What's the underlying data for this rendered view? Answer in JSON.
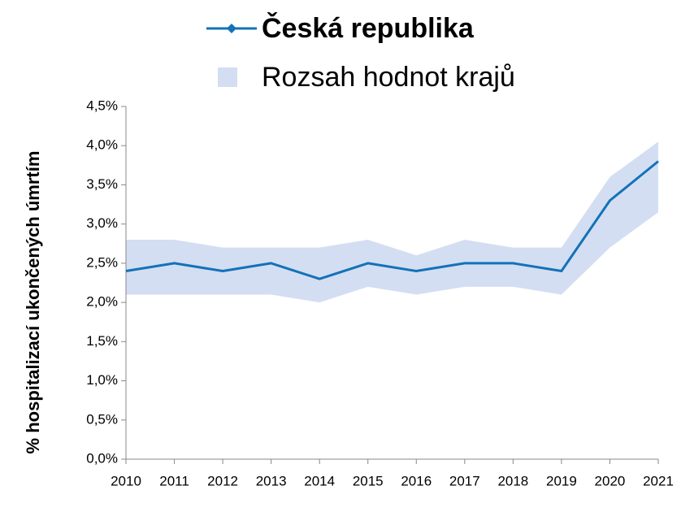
{
  "chart_data": {
    "type": "line",
    "y_axis_label": "% hospitalizací ukončených úmrtím",
    "x": [
      2010,
      2011,
      2012,
      2013,
      2014,
      2015,
      2016,
      2017,
      2018,
      2019,
      2020,
      2021
    ],
    "xlim": [
      2010,
      2021
    ],
    "xticks": [
      2010,
      2011,
      2012,
      2013,
      2014,
      2015,
      2016,
      2017,
      2018,
      2019,
      2020,
      2021
    ],
    "ylim": [
      0,
      4.5
    ],
    "yticks": [
      {
        "value": 0,
        "label": "0,0%"
      },
      {
        "value": 0.5,
        "label": "0,5%"
      },
      {
        "value": 1,
        "label": "1,0%"
      },
      {
        "value": 1.5,
        "label": "1,5%"
      },
      {
        "value": 2,
        "label": "2,0%"
      },
      {
        "value": 2.5,
        "label": "2,5%"
      },
      {
        "value": 3,
        "label": "3,0%"
      },
      {
        "value": 3.5,
        "label": "3,5%"
      },
      {
        "value": 4,
        "label": "4,0%"
      },
      {
        "value": 4.5,
        "label": "4,5%"
      }
    ],
    "grid": false,
    "legend": "top",
    "series": [
      {
        "name": "Česká republika",
        "color": "#1372b8",
        "values": [
          2.4,
          2.5,
          2.4,
          2.5,
          2.3,
          2.5,
          2.4,
          2.5,
          2.5,
          2.4,
          3.3,
          3.8
        ]
      },
      {
        "name": "Rozsah hodnot krajů",
        "color": "#d3def2",
        "upper": [
          2.8,
          2.8,
          2.7,
          2.7,
          2.7,
          2.8,
          2.6,
          2.8,
          2.7,
          2.7,
          3.6,
          4.05
        ],
        "lower": [
          2.1,
          2.1,
          2.1,
          2.1,
          2.0,
          2.2,
          2.1,
          2.2,
          2.2,
          2.1,
          2.7,
          3.15
        ]
      }
    ]
  }
}
